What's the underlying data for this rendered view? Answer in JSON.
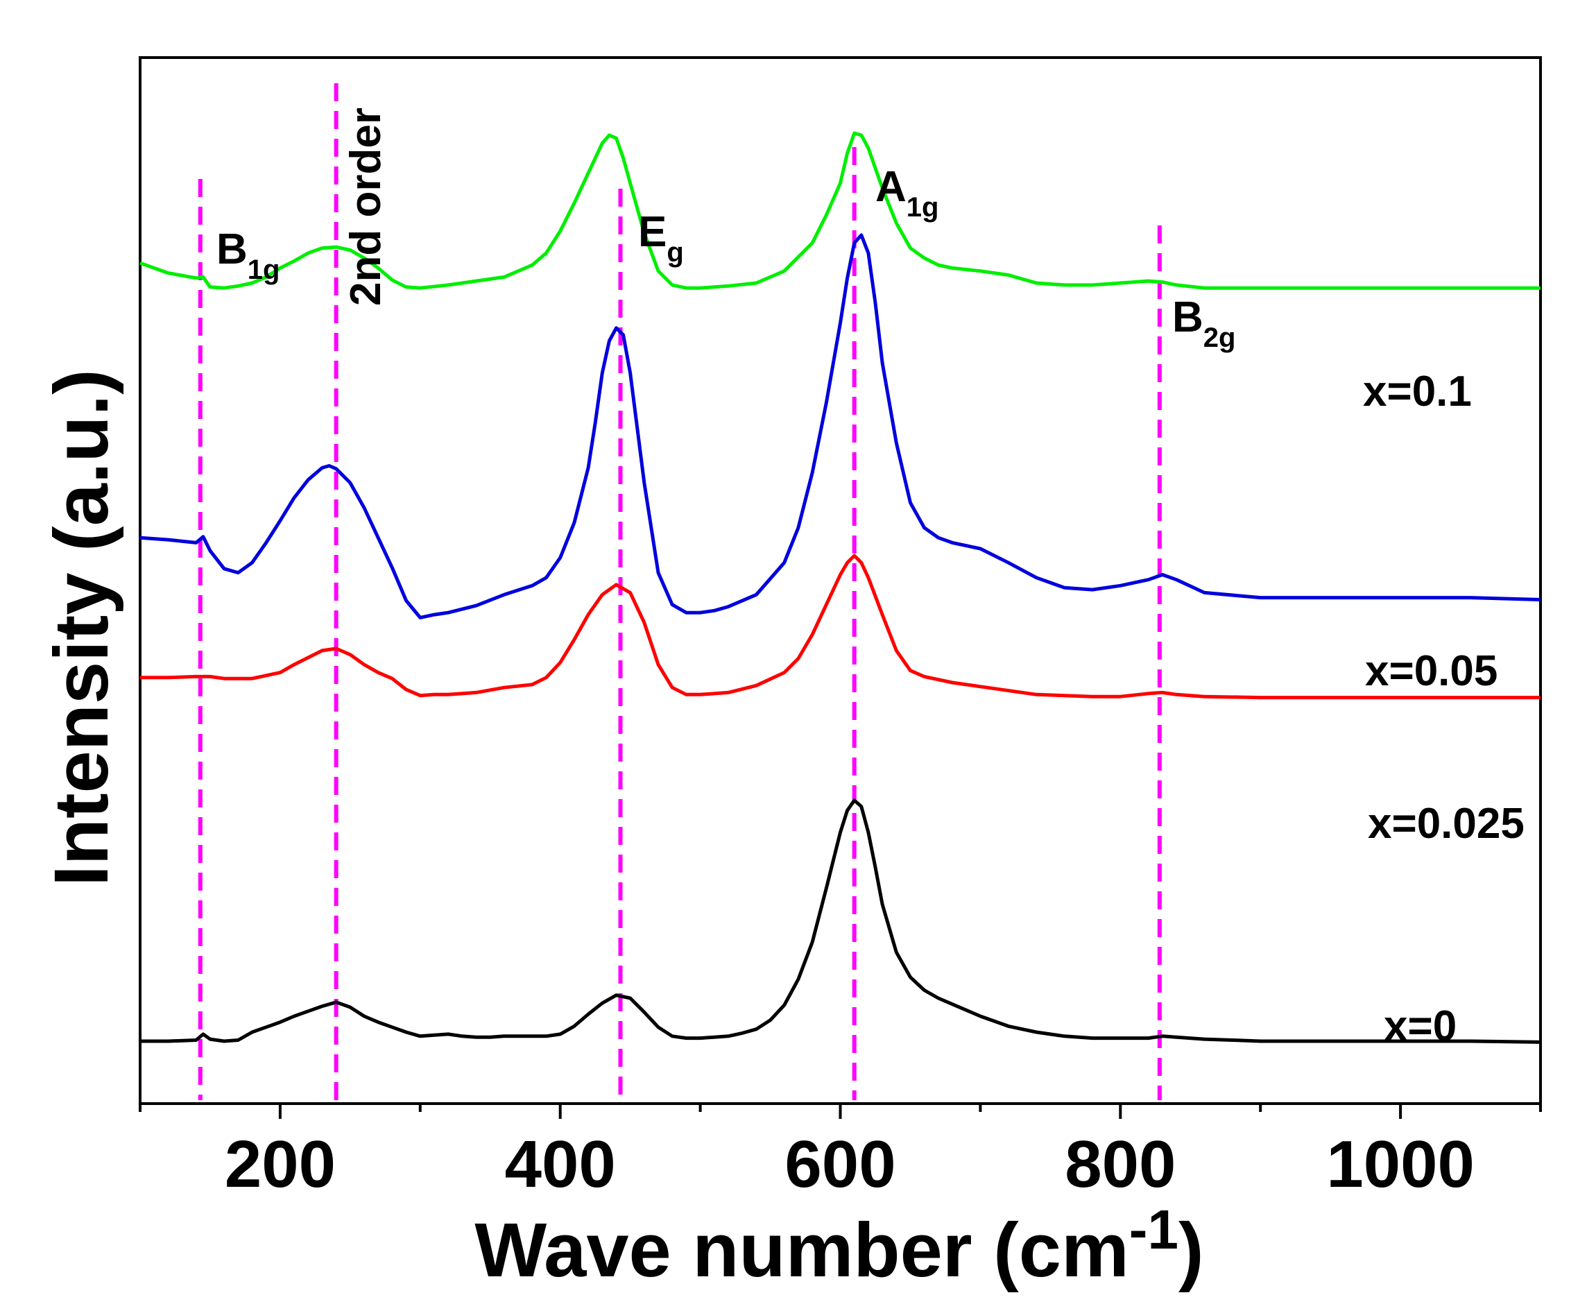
{
  "chart_data": {
    "type": "line",
    "title": "",
    "xlabel": "Wave number (cm",
    "xlabel_sup": "-1",
    "xlabel_close": ")",
    "ylabel": "Intensity (a.u.)",
    "xlim": [
      100,
      1100
    ],
    "ylim": [
      0,
      1
    ],
    "x_ticks": [
      200,
      400,
      600,
      800,
      1000
    ],
    "x_tick_labels": [
      "200",
      "400",
      "600",
      "800",
      "1000"
    ],
    "x_minor_ticks": [
      100,
      300,
      500,
      700,
      900,
      1100
    ],
    "y_ticks": [],
    "grid": false,
    "series": [
      {
        "name": "x=0",
        "color": "#000000",
        "x": [
          100,
          120,
          140,
          145,
          150,
          160,
          170,
          180,
          190,
          200,
          210,
          220,
          230,
          240,
          250,
          260,
          270,
          280,
          290,
          300,
          310,
          320,
          330,
          340,
          350,
          360,
          370,
          380,
          390,
          400,
          410,
          420,
          430,
          440,
          450,
          460,
          470,
          480,
          490,
          500,
          510,
          520,
          530,
          540,
          550,
          560,
          570,
          580,
          590,
          600,
          605,
          610,
          615,
          620,
          625,
          630,
          640,
          650,
          660,
          670,
          680,
          690,
          700,
          720,
          740,
          760,
          780,
          800,
          820,
          830,
          840,
          860,
          880,
          900,
          950,
          1000,
          1050,
          1100
        ],
        "y": [
          0.041,
          0.041,
          0.042,
          0.048,
          0.043,
          0.041,
          0.042,
          0.05,
          0.055,
          0.06,
          0.066,
          0.071,
          0.076,
          0.08,
          0.075,
          0.066,
          0.06,
          0.055,
          0.05,
          0.046,
          0.047,
          0.048,
          0.046,
          0.045,
          0.045,
          0.046,
          0.046,
          0.046,
          0.046,
          0.048,
          0.056,
          0.068,
          0.079,
          0.087,
          0.084,
          0.07,
          0.055,
          0.046,
          0.044,
          0.044,
          0.045,
          0.046,
          0.049,
          0.053,
          0.062,
          0.077,
          0.103,
          0.14,
          0.194,
          0.25,
          0.272,
          0.282,
          0.276,
          0.25,
          0.215,
          0.178,
          0.13,
          0.105,
          0.092,
          0.084,
          0.078,
          0.072,
          0.066,
          0.056,
          0.05,
          0.046,
          0.044,
          0.044,
          0.044,
          0.046,
          0.045,
          0.043,
          0.042,
          0.041,
          0.041,
          0.041,
          0.041,
          0.04
        ]
      },
      {
        "name": "x=0.025",
        "color": "#ff0000",
        "x": [
          100,
          120,
          140,
          150,
          160,
          180,
          200,
          210,
          220,
          230,
          240,
          250,
          260,
          270,
          280,
          290,
          300,
          310,
          320,
          340,
          360,
          380,
          390,
          400,
          410,
          420,
          430,
          440,
          450,
          460,
          470,
          480,
          490,
          500,
          520,
          540,
          560,
          570,
          580,
          590,
          600,
          605,
          610,
          615,
          620,
          630,
          640,
          650,
          660,
          680,
          700,
          740,
          780,
          800,
          820,
          830,
          840,
          860,
          900,
          950,
          1000,
          1050,
          1100
        ],
        "y": [
          0.405,
          0.405,
          0.406,
          0.406,
          0.404,
          0.404,
          0.41,
          0.418,
          0.425,
          0.432,
          0.434,
          0.428,
          0.418,
          0.41,
          0.404,
          0.393,
          0.387,
          0.388,
          0.388,
          0.39,
          0.395,
          0.398,
          0.405,
          0.42,
          0.443,
          0.468,
          0.488,
          0.498,
          0.49,
          0.46,
          0.418,
          0.395,
          0.388,
          0.388,
          0.39,
          0.397,
          0.41,
          0.424,
          0.448,
          0.478,
          0.508,
          0.52,
          0.527,
          0.52,
          0.505,
          0.468,
          0.432,
          0.412,
          0.406,
          0.4,
          0.396,
          0.388,
          0.386,
          0.386,
          0.389,
          0.39,
          0.388,
          0.386,
          0.385,
          0.385,
          0.385,
          0.385,
          0.385
        ]
      },
      {
        "name": "x=0.05",
        "color": "#0000dd",
        "x": [
          100,
          120,
          140,
          145,
          150,
          160,
          170,
          180,
          190,
          200,
          210,
          220,
          230,
          235,
          240,
          250,
          260,
          270,
          280,
          290,
          300,
          310,
          320,
          340,
          360,
          380,
          390,
          400,
          410,
          420,
          425,
          430,
          435,
          440,
          445,
          450,
          460,
          470,
          480,
          490,
          500,
          510,
          520,
          540,
          560,
          570,
          580,
          590,
          600,
          605,
          610,
          615,
          620,
          625,
          630,
          640,
          650,
          660,
          670,
          680,
          700,
          720,
          740,
          760,
          780,
          800,
          820,
          830,
          840,
          860,
          900,
          950,
          1000,
          1050,
          1100
        ],
        "y": [
          0.545,
          0.543,
          0.54,
          0.546,
          0.532,
          0.514,
          0.51,
          0.52,
          0.54,
          0.562,
          0.585,
          0.603,
          0.615,
          0.617,
          0.614,
          0.6,
          0.575,
          0.545,
          0.515,
          0.482,
          0.465,
          0.468,
          0.47,
          0.477,
          0.488,
          0.497,
          0.505,
          0.525,
          0.56,
          0.615,
          0.66,
          0.71,
          0.742,
          0.755,
          0.748,
          0.71,
          0.6,
          0.51,
          0.478,
          0.47,
          0.47,
          0.472,
          0.476,
          0.488,
          0.52,
          0.555,
          0.61,
          0.68,
          0.76,
          0.805,
          0.84,
          0.848,
          0.83,
          0.78,
          0.72,
          0.64,
          0.58,
          0.555,
          0.545,
          0.54,
          0.534,
          0.52,
          0.505,
          0.495,
          0.493,
          0.497,
          0.503,
          0.508,
          0.503,
          0.49,
          0.485,
          0.485,
          0.485,
          0.485,
          0.483
        ]
      },
      {
        "name": "x=0.1",
        "color": "#00ee00",
        "x": [
          100,
          120,
          140,
          145,
          150,
          160,
          170,
          180,
          190,
          200,
          210,
          220,
          230,
          240,
          250,
          260,
          270,
          280,
          290,
          300,
          320,
          340,
          360,
          380,
          390,
          400,
          410,
          420,
          430,
          435,
          440,
          445,
          450,
          460,
          470,
          480,
          490,
          500,
          520,
          540,
          560,
          580,
          590,
          600,
          605,
          610,
          615,
          620,
          630,
          640,
          650,
          660,
          670,
          680,
          700,
          720,
          740,
          760,
          780,
          800,
          820,
          830,
          840,
          860,
          900,
          950,
          1000,
          1050,
          1100
        ],
        "y": [
          0.82,
          0.81,
          0.805,
          0.806,
          0.796,
          0.795,
          0.797,
          0.8,
          0.806,
          0.815,
          0.822,
          0.83,
          0.835,
          0.836,
          0.833,
          0.825,
          0.815,
          0.803,
          0.796,
          0.795,
          0.798,
          0.802,
          0.806,
          0.818,
          0.83,
          0.852,
          0.88,
          0.91,
          0.94,
          0.948,
          0.945,
          0.925,
          0.9,
          0.85,
          0.812,
          0.798,
          0.795,
          0.795,
          0.797,
          0.8,
          0.812,
          0.84,
          0.868,
          0.9,
          0.93,
          0.95,
          0.948,
          0.935,
          0.895,
          0.86,
          0.835,
          0.825,
          0.818,
          0.815,
          0.812,
          0.808,
          0.8,
          0.798,
          0.798,
          0.8,
          0.802,
          0.801,
          0.798,
          0.795,
          0.795,
          0.795,
          0.795,
          0.795,
          0.795
        ]
      }
    ],
    "series_labels": [
      {
        "text": "x=0.1",
        "anchor_x": 1050,
        "anchor_y": 0.82
      },
      {
        "text": "x=0.05",
        "anchor_x": 1050,
        "anchor_y": 0.55
      },
      {
        "text": "x=0.025",
        "anchor_x": 1050,
        "anchor_y": 0.413
      },
      {
        "text": "x=0",
        "anchor_x": 1050,
        "anchor_y": 0.077
      }
    ],
    "reference_lines": [
      {
        "x": 143,
        "label": "B",
        "sub": "1g",
        "color": "#ff00ff"
      },
      {
        "x": 240,
        "label": "2nd order",
        "sub": "",
        "color": "#ff00ff"
      },
      {
        "x": 443,
        "label": "E",
        "sub": "g",
        "color": "#ff00ff"
      },
      {
        "x": 610,
        "label": "A",
        "sub": "1g",
        "color": "#ff00ff"
      },
      {
        "x": 828,
        "label": "B",
        "sub": "2g",
        "color": "#ff00ff"
      }
    ],
    "colors": {
      "axis": "#000000",
      "reference": "#ff00ff",
      "background": "#ffffff"
    }
  }
}
